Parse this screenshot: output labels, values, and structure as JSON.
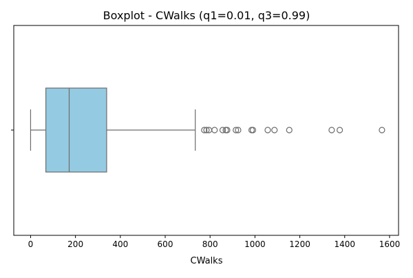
{
  "chart_data": {
    "type": "boxplot",
    "title": "Boxplot - CWalks (q1=0.01, q3=0.99)",
    "xlabel": "CWalks",
    "ylabel": "",
    "orientation": "horizontal",
    "xlim": [
      -75,
      1640
    ],
    "xticks": [
      0,
      200,
      400,
      600,
      800,
      1000,
      1200,
      1400,
      1600
    ],
    "xtick_labels": [
      "0",
      "200",
      "400",
      "600",
      "800",
      "1000",
      "1200",
      "1400",
      "1600"
    ],
    "grid": false,
    "box": {
      "whisker_low": 0,
      "q1": 68,
      "median": 172,
      "q3": 339,
      "whisker_high": 734
    },
    "outliers": [
      774,
      784,
      795,
      820,
      856,
      870,
      876,
      915,
      925,
      985,
      991,
      1057,
      1087,
      1153,
      1342,
      1378,
      1566
    ],
    "colors": {
      "box_fill": "#94cbe2",
      "line": "#6b6b6b",
      "axis": "#000000"
    }
  }
}
